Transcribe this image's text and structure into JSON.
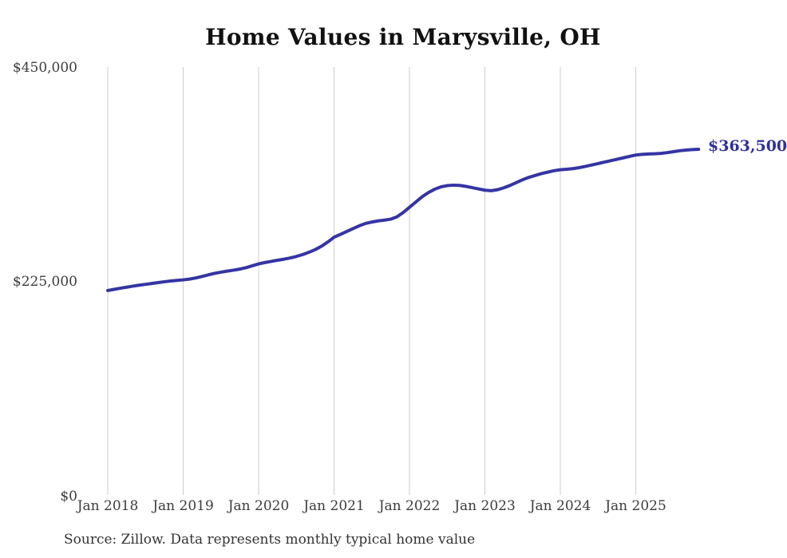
{
  "chart_data": {
    "type": "line",
    "title": "Home Values in Marysville, OH",
    "source_note": "Source: Zillow. Data represents monthly typical home value",
    "last_value_label": "$363,500",
    "last_value": 363500,
    "xlabel": "",
    "ylabel": "",
    "ylim": [
      0,
      450000
    ],
    "grid": "vertical-only",
    "legend": "none",
    "line_color": "#3534a4",
    "annotation_color": "#3030a0",
    "gridline_color": "#cccccc",
    "x_tick_labels": [
      "Jan 2018",
      "Jan 2019",
      "Jan 2020",
      "Jan 2021",
      "Jan 2022",
      "Jan 2023",
      "Jan 2024",
      "Jan 2025"
    ],
    "y_ticks": [
      {
        "value": 0,
        "label": "$0"
      },
      {
        "value": 225000,
        "label": "$225,000"
      },
      {
        "value": 450000,
        "label": "$450,000"
      }
    ],
    "series": [
      {
        "name": "Monthly typical home value",
        "x": [
          "2018-01",
          "2018-02",
          "2018-03",
          "2018-04",
          "2018-05",
          "2018-06",
          "2018-07",
          "2018-08",
          "2018-09",
          "2018-10",
          "2018-11",
          "2018-12",
          "2019-01",
          "2019-02",
          "2019-03",
          "2019-04",
          "2019-05",
          "2019-06",
          "2019-07",
          "2019-08",
          "2019-09",
          "2019-10",
          "2019-11",
          "2019-12",
          "2020-01",
          "2020-02",
          "2020-03",
          "2020-04",
          "2020-05",
          "2020-06",
          "2020-07",
          "2020-08",
          "2020-09",
          "2020-10",
          "2020-11",
          "2020-12",
          "2021-01",
          "2021-02",
          "2021-03",
          "2021-04",
          "2021-05",
          "2021-06",
          "2021-07",
          "2021-08",
          "2021-09",
          "2021-10",
          "2021-11",
          "2021-12",
          "2022-01",
          "2022-02",
          "2022-03",
          "2022-04",
          "2022-05",
          "2022-06",
          "2022-07",
          "2022-08",
          "2022-09",
          "2022-10",
          "2022-11",
          "2022-12",
          "2023-01",
          "2023-02",
          "2023-03",
          "2023-04",
          "2023-05",
          "2023-06",
          "2023-07",
          "2023-08",
          "2023-09",
          "2023-10",
          "2023-11",
          "2023-12",
          "2024-01",
          "2024-02",
          "2024-03",
          "2024-04",
          "2024-05",
          "2024-06",
          "2024-07",
          "2024-08",
          "2024-09",
          "2024-10",
          "2024-11",
          "2024-12",
          "2025-01",
          "2025-02",
          "2025-03",
          "2025-04",
          "2025-05",
          "2025-06",
          "2025-07",
          "2025-08",
          "2025-09",
          "2025-10",
          "2025-11"
        ],
        "values": [
          215000,
          216200,
          217400,
          218500,
          219600,
          220600,
          221500,
          222400,
          223300,
          224200,
          225000,
          225600,
          226200,
          227000,
          228200,
          229800,
          231500,
          233000,
          234300,
          235400,
          236400,
          237500,
          239000,
          241000,
          243000,
          244400,
          245600,
          246800,
          247900,
          249200,
          250800,
          252800,
          255200,
          258000,
          261500,
          266000,
          271000,
          274000,
          277000,
          280000,
          283000,
          285500,
          287000,
          288200,
          289000,
          290000,
          292500,
          297000,
          302500,
          308000,
          313500,
          318000,
          321500,
          324000,
          325300,
          325800,
          325500,
          324500,
          323200,
          321800,
          320500,
          320000,
          321000,
          323000,
          325500,
          328500,
          331500,
          334000,
          336000,
          338000,
          339500,
          341000,
          342000,
          342500,
          343200,
          344200,
          345500,
          347000,
          348500,
          350000,
          351500,
          353000,
          354500,
          356000,
          357500,
          358200,
          358600,
          358800,
          359200,
          360000,
          361000,
          362000,
          362700,
          363200,
          363500
        ]
      }
    ]
  }
}
